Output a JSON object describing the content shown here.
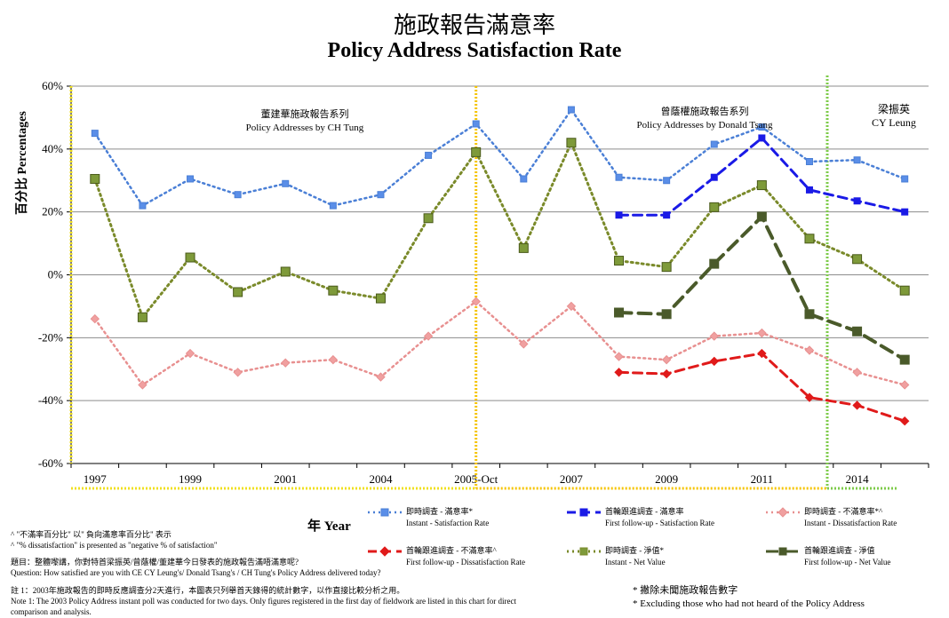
{
  "title_zh": "施政報告滿意率",
  "title_en": "Policy Address  Satisfaction Rate",
  "ylabel": "百分比 Percentages",
  "xlabel": "年 Year",
  "segments": {
    "tung_zh": "董建華施政報告系列",
    "tung_en": "Policy Addresses by CH Tung",
    "tsang_zh": "曾蔭權施政報告系列",
    "tsang_en": "Policy Addresses by Donald Tsang",
    "leung_zh": "梁振英",
    "leung_en": "CY Leung"
  },
  "legend": [
    {
      "zh": "即時調查 - 滿意率*",
      "en": "Instant - Satisfaction Rate",
      "color": "#4a7fd6",
      "style": "dotted",
      "marker": "square"
    },
    {
      "zh": "首輪跟進調查 - 滿意率",
      "en": "First follow-up - Satisfaction Rate",
      "color": "#1a1ae6",
      "style": "dashed",
      "marker": "square"
    },
    {
      "zh": "即時調查 - 不滿意率*^",
      "en": "Instant - Dissatisfaction Rate",
      "color": "#e89090",
      "style": "dotted",
      "marker": "diamond"
    },
    {
      "zh": "首輪跟進調查 - 不滿意率^",
      "en": "First follow-up - Dissatisfaction  Rate",
      "color": "#e01a1a",
      "style": "dashed",
      "marker": "diamond"
    },
    {
      "zh": "即時調查 - 淨值*",
      "en": "Instant - Net Value",
      "color": "#7a8a2a",
      "style": "dotted",
      "marker": "square"
    },
    {
      "zh": "首輪跟進調查 - 淨值",
      "en": "First follow-up  - Net Value",
      "color": "#4a5a2a",
      "style": "dashed",
      "marker": "square"
    }
  ],
  "notes": {
    "n1": "^ \"不滿率百分比\" 以\" 負向滿意率百分比\" 表示",
    "n2": "^ \"% dissatisfaction\" is presented as \"negative % of satisfaction\"",
    "q_zh": "題目：整體嚟講，你對特首梁振英/曾蔭權/董建華今日發表的施政報告滿唔滿意呢?",
    "q_en": "Question: How satisfied are you with CE CY Leung's/ Donald Tsang's / CH Tung's Policy Address  delivered today?",
    "note_zh": "註 1：2003年施政報告的即時反應調查分2天進行，本圖表只列舉首天錄得的統計數字，以作直接比較分析之用。",
    "note_en1": "Note 1: The 2003 Policy Address instant poll was conducted for two days. Only figures registered in the first day of fieldwork are listed in this chart for direct",
    "note_en2": "comparison and analysis.",
    "excl_zh": "* 撇除未聞施政報告數字",
    "excl_en": "* Excluding those who had not heard of the Policy Address"
  },
  "chart_data": {
    "type": "line",
    "title": "Policy Address  Satisfaction Rate",
    "ylabel": "百分比 Percentages",
    "xlabel": "年 Year",
    "ylim": [
      -60,
      60
    ],
    "yticks": [
      "60%",
      "40%",
      "20%",
      "0%",
      "-20%",
      "-40%",
      "-60%"
    ],
    "x_tick_labels": [
      "1997",
      "1999",
      "2001",
      "2004",
      "2005-Oct",
      "2007",
      "2009",
      "2011",
      "2014"
    ],
    "x_tick_positions": [
      0,
      2,
      4,
      6,
      8,
      10,
      12,
      14,
      16
    ],
    "grid": true,
    "series": [
      {
        "name": "Instant - Satisfaction Rate",
        "x_index": [
          0,
          1,
          2,
          3,
          4,
          5,
          6,
          7,
          8,
          9,
          10,
          11,
          12,
          13,
          14,
          15,
          16,
          17
        ],
        "values": [
          45,
          22,
          30.5,
          25.5,
          29,
          22,
          25.5,
          38,
          48,
          30.5,
          52.5,
          31,
          30,
          41.5,
          47,
          36,
          36.5,
          30.5
        ]
      },
      {
        "name": "First follow-up - Satisfaction Rate",
        "x_index": [
          11,
          12,
          13,
          14,
          15,
          16,
          17
        ],
        "values": [
          19,
          19,
          31,
          43.5,
          27,
          23.5,
          20
        ]
      },
      {
        "name": "Instant - Dissatisfaction Rate",
        "x_index": [
          0,
          1,
          2,
          3,
          4,
          5,
          6,
          7,
          8,
          9,
          10,
          11,
          12,
          13,
          14,
          15,
          16,
          17
        ],
        "values": [
          -14,
          -35,
          -25,
          -31,
          -28,
          -27,
          -32.5,
          -19.5,
          -8.5,
          -22,
          -10,
          -26,
          -27,
          -19.5,
          -18.5,
          -24,
          -31,
          -35
        ]
      },
      {
        "name": "First follow-up - Dissatisfaction  Rate",
        "x_index": [
          11,
          12,
          13,
          14,
          15,
          16,
          17
        ],
        "values": [
          -31,
          -31.5,
          -27.5,
          -25,
          -39,
          -41.5,
          -46.5
        ]
      },
      {
        "name": "Instant - Net Value",
        "x_index": [
          0,
          1,
          2,
          3,
          4,
          5,
          6,
          7,
          8,
          9,
          10,
          11,
          12,
          13,
          14,
          15,
          16,
          17
        ],
        "values": [
          30.5,
          -13.5,
          5.5,
          -5.5,
          1,
          -5,
          -7.5,
          18,
          39,
          8.5,
          42,
          4.5,
          2.5,
          21.5,
          28.5,
          11.5,
          5,
          -5
        ]
      },
      {
        "name": "First follow-up  - Net Value",
        "x_index": [
          11,
          12,
          13,
          14,
          15,
          16,
          17
        ],
        "values": [
          -12,
          -12.5,
          3.5,
          18.5,
          -12.5,
          -18,
          -27
        ]
      }
    ]
  }
}
